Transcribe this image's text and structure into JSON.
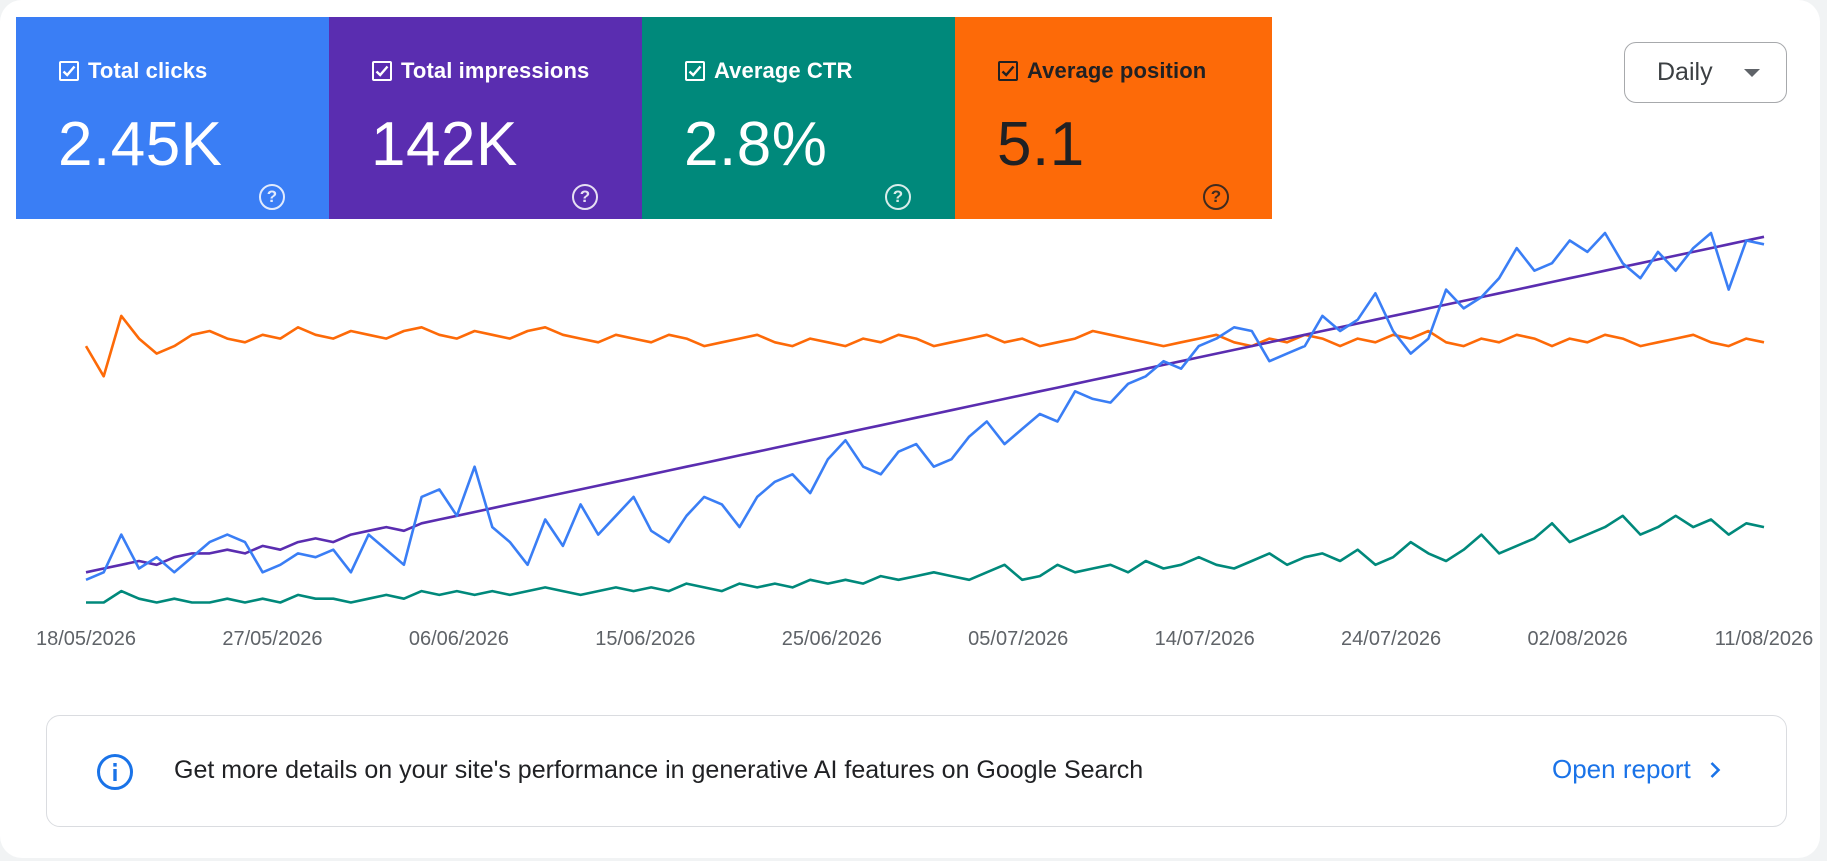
{
  "metrics": [
    {
      "label": "Total clicks",
      "value": "2.45K",
      "color": "#3a7ef5",
      "text_color": "#ffffff"
    },
    {
      "label": "Total impressions",
      "value": "142K",
      "color": "#5a2db0",
      "text_color": "#ffffff"
    },
    {
      "label": "Average CTR",
      "value": "2.8%",
      "color": "#00897b",
      "text_color": "#ffffff"
    },
    {
      "label": "Average position",
      "value": "5.1",
      "color": "#fd6a08",
      "text_color": "#202124"
    }
  ],
  "dropdown": {
    "selected": "Daily"
  },
  "chart_data": {
    "type": "line",
    "x_ticks": [
      "18/05/2026",
      "27/05/2026",
      "06/06/2026",
      "15/06/2026",
      "25/06/2026",
      "05/07/2026",
      "14/07/2026",
      "24/07/2026",
      "02/08/2026",
      "11/08/2026"
    ],
    "x_range": [
      "18/05/2026",
      "11/08/2026"
    ],
    "y_axis_labels": "none",
    "grid": false,
    "series": [
      {
        "metric": "Total clicks",
        "color": "#3a7ef5",
        "relative_values": [
          0.08,
          0.1,
          0.2,
          0.11,
          0.14,
          0.1,
          0.14,
          0.18,
          0.2,
          0.18,
          0.1,
          0.12,
          0.15,
          0.14,
          0.16,
          0.1,
          0.2,
          0.16,
          0.12,
          0.3,
          0.32,
          0.25,
          0.38,
          0.22,
          0.18,
          0.12,
          0.24,
          0.17,
          0.28,
          0.2,
          0.25,
          0.3,
          0.21,
          0.18,
          0.25,
          0.3,
          0.28,
          0.22,
          0.3,
          0.34,
          0.36,
          0.31,
          0.4,
          0.45,
          0.38,
          0.36,
          0.42,
          0.44,
          0.38,
          0.4,
          0.46,
          0.5,
          0.44,
          0.48,
          0.52,
          0.5,
          0.58,
          0.56,
          0.55,
          0.6,
          0.62,
          0.66,
          0.64,
          0.7,
          0.72,
          0.75,
          0.74,
          0.66,
          0.68,
          0.7,
          0.78,
          0.74,
          0.77,
          0.84,
          0.74,
          0.68,
          0.72,
          0.85,
          0.8,
          0.83,
          0.88,
          0.96,
          0.9,
          0.92,
          0.98,
          0.95,
          1.0,
          0.92,
          0.88,
          0.95,
          0.9,
          0.96,
          1.0,
          0.85,
          0.98,
          0.97
        ]
      },
      {
        "metric": "Total impressions",
        "color": "#5a2db0",
        "relative_values": [
          0.1,
          0.11,
          0.12,
          0.13,
          0.12,
          0.14,
          0.15,
          0.15,
          0.16,
          0.15,
          0.17,
          0.16,
          0.18,
          0.19,
          0.18,
          0.2,
          0.21,
          0.22,
          0.21,
          0.23,
          0.24,
          0.25,
          0.26,
          0.27,
          0.28,
          0.29,
          0.3,
          0.31,
          0.32,
          0.33,
          0.34,
          0.35,
          0.36,
          0.37,
          0.38,
          0.39,
          0.4,
          0.41,
          0.42,
          0.43,
          0.44,
          0.45,
          0.46,
          0.47,
          0.48,
          0.49,
          0.5,
          0.51,
          0.52,
          0.53,
          0.54,
          0.55,
          0.56,
          0.57,
          0.58,
          0.59,
          0.6,
          0.61,
          0.62,
          0.63,
          0.64,
          0.65,
          0.66,
          0.67,
          0.68,
          0.69,
          0.7,
          0.71,
          0.72,
          0.73,
          0.74,
          0.75,
          0.76,
          0.77,
          0.78,
          0.79,
          0.8,
          0.81,
          0.82,
          0.83,
          0.84,
          0.85,
          0.86,
          0.87,
          0.88,
          0.89,
          0.9,
          0.91,
          0.92,
          0.93,
          0.94,
          0.95,
          0.96,
          0.97,
          0.98,
          0.99
        ]
      },
      {
        "metric": "Average CTR",
        "color": "#00897b",
        "relative_values": [
          0.02,
          0.02,
          0.05,
          0.03,
          0.02,
          0.03,
          0.02,
          0.02,
          0.03,
          0.02,
          0.03,
          0.02,
          0.04,
          0.03,
          0.03,
          0.02,
          0.03,
          0.04,
          0.03,
          0.05,
          0.04,
          0.05,
          0.04,
          0.05,
          0.04,
          0.05,
          0.06,
          0.05,
          0.04,
          0.05,
          0.06,
          0.05,
          0.06,
          0.05,
          0.07,
          0.06,
          0.05,
          0.07,
          0.06,
          0.07,
          0.06,
          0.08,
          0.07,
          0.08,
          0.07,
          0.09,
          0.08,
          0.09,
          0.1,
          0.09,
          0.08,
          0.1,
          0.12,
          0.08,
          0.09,
          0.12,
          0.1,
          0.11,
          0.12,
          0.1,
          0.13,
          0.11,
          0.12,
          0.14,
          0.12,
          0.11,
          0.13,
          0.15,
          0.12,
          0.14,
          0.15,
          0.13,
          0.16,
          0.12,
          0.14,
          0.18,
          0.15,
          0.13,
          0.16,
          0.2,
          0.15,
          0.17,
          0.19,
          0.23,
          0.18,
          0.2,
          0.22,
          0.25,
          0.2,
          0.22,
          0.25,
          0.22,
          0.24,
          0.2,
          0.23,
          0.22
        ]
      },
      {
        "metric": "Average position",
        "color": "#fd6a08",
        "relative_values": [
          0.7,
          0.62,
          0.78,
          0.72,
          0.68,
          0.7,
          0.73,
          0.74,
          0.72,
          0.71,
          0.73,
          0.72,
          0.75,
          0.73,
          0.72,
          0.74,
          0.73,
          0.72,
          0.74,
          0.75,
          0.73,
          0.72,
          0.74,
          0.73,
          0.72,
          0.74,
          0.75,
          0.73,
          0.72,
          0.71,
          0.73,
          0.72,
          0.71,
          0.73,
          0.72,
          0.7,
          0.71,
          0.72,
          0.73,
          0.71,
          0.7,
          0.72,
          0.71,
          0.7,
          0.72,
          0.71,
          0.73,
          0.72,
          0.7,
          0.71,
          0.72,
          0.73,
          0.71,
          0.72,
          0.7,
          0.71,
          0.72,
          0.74,
          0.73,
          0.72,
          0.71,
          0.7,
          0.71,
          0.72,
          0.73,
          0.71,
          0.7,
          0.72,
          0.71,
          0.73,
          0.72,
          0.7,
          0.72,
          0.71,
          0.73,
          0.72,
          0.74,
          0.71,
          0.7,
          0.72,
          0.71,
          0.73,
          0.72,
          0.7,
          0.72,
          0.71,
          0.73,
          0.72,
          0.7,
          0.71,
          0.72,
          0.73,
          0.71,
          0.7,
          0.72,
          0.71
        ]
      }
    ]
  },
  "banner": {
    "text": "Get more details on your site's performance in generative AI features on Google Search",
    "link_label": "Open report"
  }
}
